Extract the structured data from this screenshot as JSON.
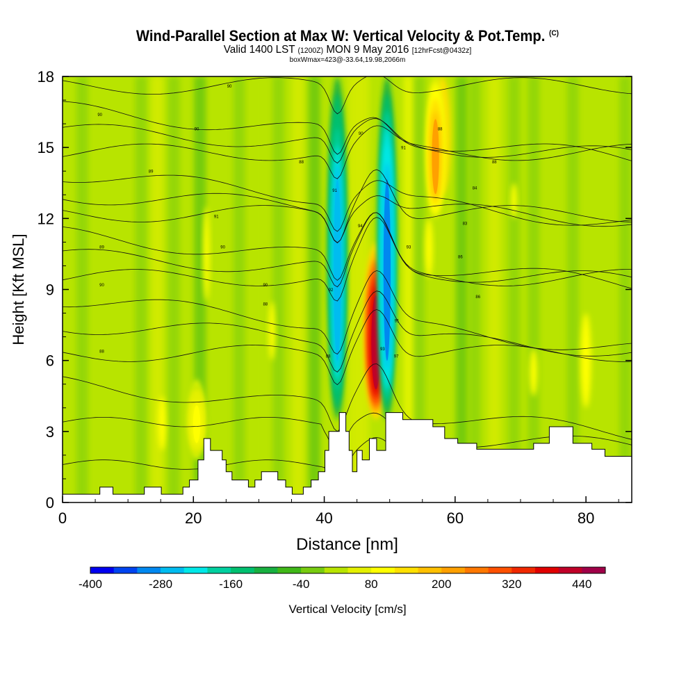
{
  "title": {
    "line1": "Wind-Parallel Section at Max W: Vertical Velocity & Pot.Temp.",
    "copyright": "(C)",
    "line2_a": "Valid 1400 LST",
    "line2_b": "(1200Z)",
    "line2_c": "MON 9 May 2016",
    "line2_d": "[12hrFcst@0432z]",
    "line3": "boxWmax=423@-33.64,19.98,2066m"
  },
  "chart_data": {
    "type": "heatmap",
    "title": "Wind-Parallel Section at Max W: Vertical Velocity & Pot.Temp.",
    "xlabel": "Distance [nm]",
    "ylabel": "Height [Kft MSL]",
    "xlim": [
      0,
      87
    ],
    "ylim": [
      0,
      18
    ],
    "xticks": [
      0,
      20,
      40,
      60,
      80
    ],
    "yticks": [
      0,
      3,
      6,
      9,
      12,
      15,
      18
    ],
    "colorbar": {
      "label": "Vertical Velocity [cm/s]",
      "min": -400,
      "max": 480,
      "step": 40,
      "tick_labels": [
        "-400",
        "-280",
        "-160",
        "-40",
        "80",
        "200",
        "320",
        "440"
      ],
      "colors": [
        "#0000f0",
        "#0044f0",
        "#0088f0",
        "#00bcf0",
        "#00e8e8",
        "#00d0a0",
        "#00c070",
        "#18b040",
        "#40b818",
        "#78cc10",
        "#b8e400",
        "#e4f000",
        "#ffff00",
        "#ffe000",
        "#ffc000",
        "#ffa000",
        "#ff7800",
        "#ff5000",
        "#f02800",
        "#e00000",
        "#c00028",
        "#a00048"
      ]
    },
    "velocity_features": [
      {
        "kind": "updraft",
        "x": 47.9,
        "z_bottom": 3.5,
        "z_top": 11,
        "peak_cms": 423,
        "note": "boxWmax=423"
      },
      {
        "kind": "downdraft",
        "x": 42.0,
        "z_bottom": 3.5,
        "z_top": 18,
        "peak_cms": -280
      },
      {
        "kind": "downdraft",
        "x": 49.6,
        "z_bottom": 3.5,
        "z_top": 18,
        "peak_cms": -300
      },
      {
        "kind": "updraft",
        "x": 57.0,
        "z_bottom": 12,
        "z_top": 18,
        "peak_cms": 200
      },
      {
        "kind": "updraft",
        "x": 20.5,
        "z_bottom": 2,
        "z_top": 5,
        "peak_cms": 100
      }
    ],
    "theta_contour_labels": [
      {
        "x": 6,
        "y": 6.4,
        "label": "88"
      },
      {
        "x": 31,
        "y": 8.4,
        "label": "88"
      },
      {
        "x": 6,
        "y": 9.2,
        "label": "90"
      },
      {
        "x": 31,
        "y": 9.2,
        "label": "90"
      },
      {
        "x": 6,
        "y": 10.8,
        "label": "89"
      },
      {
        "x": 24.5,
        "y": 10.8,
        "label": "90"
      },
      {
        "x": 23.5,
        "y": 12.1,
        "label": "91"
      },
      {
        "x": 13.5,
        "y": 14.0,
        "label": "89"
      },
      {
        "x": 36.5,
        "y": 14.4,
        "label": "88"
      },
      {
        "x": 5.7,
        "y": 16.4,
        "label": "90"
      },
      {
        "x": 20.5,
        "y": 15.8,
        "label": "90"
      },
      {
        "x": 25.5,
        "y": 17.6,
        "label": "90"
      },
      {
        "x": 41.6,
        "y": 13.2,
        "label": "91"
      },
      {
        "x": 45.6,
        "y": 15.6,
        "label": "90"
      },
      {
        "x": 52.1,
        "y": 15.0,
        "label": "91"
      },
      {
        "x": 57.7,
        "y": 15.8,
        "label": "88"
      },
      {
        "x": 66.0,
        "y": 14.4,
        "label": "88"
      },
      {
        "x": 63.0,
        "y": 13.3,
        "label": "84"
      },
      {
        "x": 61.5,
        "y": 11.8,
        "label": "83"
      },
      {
        "x": 60.8,
        "y": 10.4,
        "label": "86"
      },
      {
        "x": 63.5,
        "y": 8.7,
        "label": "86"
      },
      {
        "x": 45.5,
        "y": 11.7,
        "label": "94"
      },
      {
        "x": 52.9,
        "y": 10.8,
        "label": "93"
      },
      {
        "x": 41.0,
        "y": 9.0,
        "label": "92"
      },
      {
        "x": 51.1,
        "y": 7.7,
        "label": "91"
      },
      {
        "x": 48.9,
        "y": 6.5,
        "label": "93"
      },
      {
        "x": 51.0,
        "y": 6.2,
        "label": "97"
      },
      {
        "x": 40.6,
        "y": 6.2,
        "label": "88"
      }
    ],
    "terrain_kft": [
      [
        0,
        0.35
      ],
      [
        5.7,
        0.35
      ],
      [
        5.7,
        0.65
      ],
      [
        7.7,
        0.65
      ],
      [
        7.7,
        0.35
      ],
      [
        12.5,
        0.35
      ],
      [
        12.5,
        0.65
      ],
      [
        15.1,
        0.65
      ],
      [
        15.1,
        0.35
      ],
      [
        18.4,
        0.35
      ],
      [
        18.4,
        0.65
      ],
      [
        19.4,
        0.65
      ],
      [
        19.4,
        0.95
      ],
      [
        20.7,
        0.95
      ],
      [
        20.7,
        1.8
      ],
      [
        21.6,
        1.8
      ],
      [
        21.6,
        2.7
      ],
      [
        22.6,
        2.7
      ],
      [
        22.6,
        2.2
      ],
      [
        24.4,
        2.2
      ],
      [
        24.4,
        1.8
      ],
      [
        25.0,
        1.8
      ],
      [
        25.0,
        1.3
      ],
      [
        25.9,
        1.3
      ],
      [
        25.9,
        0.95
      ],
      [
        28.4,
        0.95
      ],
      [
        28.4,
        0.65
      ],
      [
        29.4,
        0.65
      ],
      [
        29.4,
        0.95
      ],
      [
        30.4,
        0.95
      ],
      [
        30.4,
        1.3
      ],
      [
        32.9,
        1.3
      ],
      [
        32.9,
        0.95
      ],
      [
        34.1,
        0.95
      ],
      [
        34.1,
        0.65
      ],
      [
        35.1,
        0.65
      ],
      [
        35.1,
        0.35
      ],
      [
        36.8,
        0.35
      ],
      [
        36.8,
        0.65
      ],
      [
        38.0,
        0.65
      ],
      [
        38.0,
        0.95
      ],
      [
        39.1,
        0.95
      ],
      [
        39.1,
        1.3
      ],
      [
        40.1,
        1.3
      ],
      [
        40.1,
        2.2
      ],
      [
        40.7,
        2.2
      ],
      [
        40.7,
        3.0
      ],
      [
        42.3,
        3.0
      ],
      [
        42.3,
        3.8
      ],
      [
        43.3,
        3.8
      ],
      [
        43.3,
        3.0
      ],
      [
        43.8,
        3.0
      ],
      [
        43.8,
        2.2
      ],
      [
        44.3,
        2.2
      ],
      [
        44.3,
        1.3
      ],
      [
        45.0,
        1.3
      ],
      [
        45.0,
        2.2
      ],
      [
        45.8,
        2.2
      ],
      [
        45.8,
        1.8
      ],
      [
        46.9,
        1.8
      ],
      [
        46.9,
        2.7
      ],
      [
        48.0,
        2.7
      ],
      [
        48.0,
        2.2
      ],
      [
        49.4,
        2.2
      ],
      [
        49.4,
        3.8
      ],
      [
        52.0,
        3.8
      ],
      [
        52.0,
        3.5
      ],
      [
        56.6,
        3.5
      ],
      [
        56.6,
        3.2
      ],
      [
        58.4,
        3.2
      ],
      [
        58.4,
        2.7
      ],
      [
        60.4,
        2.7
      ],
      [
        60.4,
        2.5
      ],
      [
        63.3,
        2.5
      ],
      [
        63.3,
        2.25
      ],
      [
        72.0,
        2.25
      ],
      [
        72.0,
        2.5
      ],
      [
        74.4,
        2.5
      ],
      [
        74.4,
        3.2
      ],
      [
        78.0,
        3.2
      ],
      [
        78.0,
        2.5
      ],
      [
        80.9,
        2.5
      ],
      [
        80.9,
        2.25
      ],
      [
        82.9,
        2.25
      ],
      [
        82.9,
        1.95
      ],
      [
        87,
        1.95
      ]
    ]
  }
}
